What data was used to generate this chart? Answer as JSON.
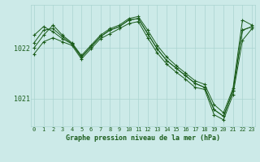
{
  "bg_color": "#cceae8",
  "grid_color": "#aad4d0",
  "line_color": "#1a5c1a",
  "title": "Graphe pression niveau de la mer (hPa)",
  "x_ticks": [
    0,
    1,
    2,
    3,
    4,
    5,
    6,
    7,
    8,
    9,
    10,
    11,
    12,
    13,
    14,
    15,
    16,
    17,
    18,
    19,
    20,
    21,
    22,
    23
  ],
  "xlim": [
    -0.3,
    23.3
  ],
  "ylim": [
    1020.45,
    1022.85
  ],
  "yticks": [
    1021,
    1022
  ],
  "series": [
    [
      1022.0,
      1022.25,
      1022.45,
      1022.25,
      1022.1,
      1021.85,
      1022.05,
      1022.25,
      1022.38,
      1022.45,
      1022.58,
      1022.62,
      1022.35,
      1022.05,
      1021.82,
      1021.65,
      1021.5,
      1021.35,
      1021.28,
      1020.88,
      1020.72,
      1021.2,
      1022.55,
      1022.45
    ],
    [
      1021.88,
      1022.12,
      1022.2,
      1022.12,
      1022.05,
      1021.78,
      1021.98,
      1022.18,
      1022.28,
      1022.38,
      1022.48,
      1022.52,
      1022.2,
      1021.9,
      1021.68,
      1021.52,
      1021.38,
      1021.22,
      1021.18,
      1020.68,
      1020.58,
      1021.08,
      1022.15,
      1022.38
    ],
    [
      1022.1,
      1022.35,
      1022.38,
      1022.22,
      1022.08,
      1021.82,
      1022.02,
      1022.22,
      1022.35,
      1022.42,
      1022.55,
      1022.58,
      1022.28,
      1021.98,
      1021.75,
      1021.6,
      1021.45,
      1021.3,
      1021.22,
      1020.78,
      1020.65,
      1021.15,
      1022.35,
      1022.42
    ],
    [
      1022.25,
      1022.42,
      1022.32,
      1022.18,
      1022.08,
      1021.82,
      1022.02,
      1022.22,
      1022.35,
      1022.42,
      1022.55,
      1022.58,
      1022.28,
      1021.98,
      1021.75,
      1021.6,
      1021.45,
      1021.3,
      1021.22,
      1020.78,
      1020.65,
      1021.15,
      1022.35,
      1022.42
    ]
  ]
}
